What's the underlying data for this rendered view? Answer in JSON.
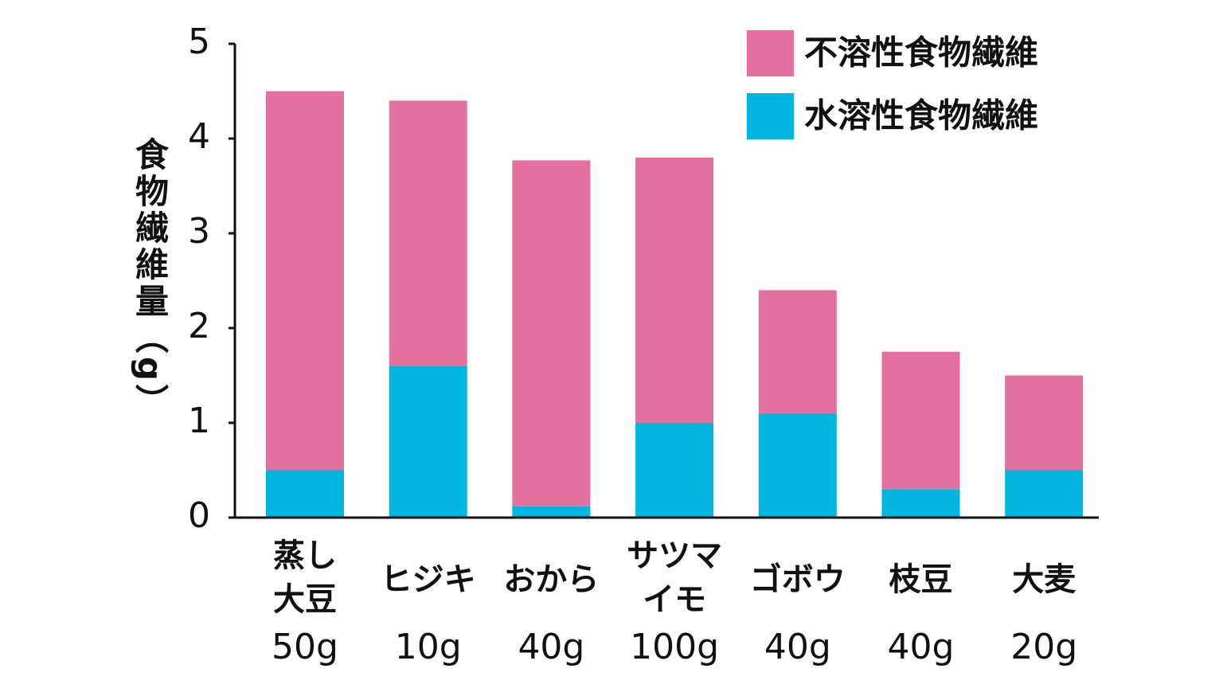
{
  "chart_data": {
    "type": "stacked_bar",
    "y_label": "食物繊維量（g）",
    "categories": [
      [
        "蒸し",
        "大豆",
        "50g"
      ],
      [
        "ヒジキ",
        "10g"
      ],
      [
        "おから",
        "40g"
      ],
      [
        "サツマ",
        "イモ",
        "100g"
      ],
      [
        "ゴボウ",
        "40g"
      ],
      [
        "枝豆",
        "40g"
      ],
      [
        "大麦",
        "20g"
      ]
    ],
    "series": [
      {
        "name": "不溶性食物繊維",
        "color": "#e3709f",
        "values": [
          4.0,
          2.8,
          3.65,
          2.8,
          1.3,
          1.45,
          1.0
        ]
      },
      {
        "name": "水溶性食物繊維",
        "color": "#00b6de",
        "values": [
          0.5,
          1.6,
          0.12,
          1.0,
          1.1,
          0.3,
          0.5
        ]
      }
    ],
    "ylim": [
      0,
      5
    ],
    "yticks": [
      0,
      1,
      2,
      3,
      4,
      5
    ]
  }
}
